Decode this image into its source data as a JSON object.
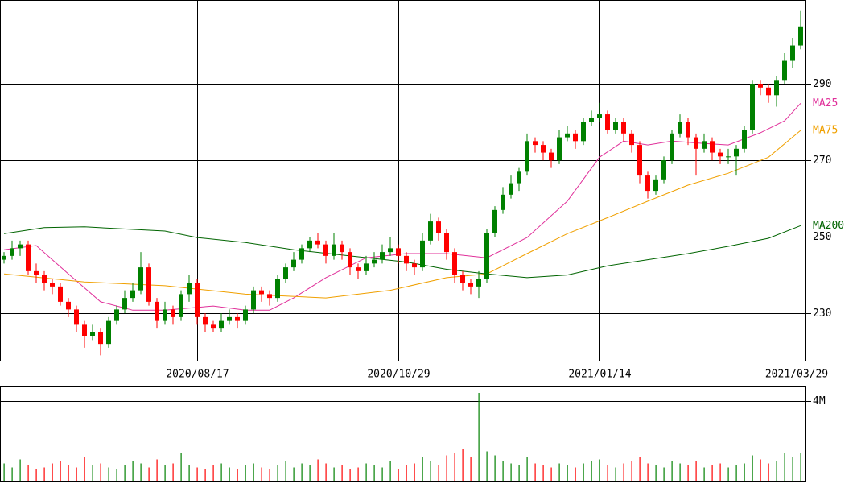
{
  "chart_data": [
    {
      "type": "candlestick",
      "xlim": [
        -0.5,
        99.5
      ],
      "ylim": [
        217.4,
        311.9
      ],
      "yticks": [
        230,
        250,
        270,
        290
      ],
      "xticks": [
        {
          "value": 24,
          "label": "2020/08/17"
        },
        {
          "value": 49,
          "label": "2020/10/29"
        },
        {
          "value": 74,
          "label": "2021/01/14"
        },
        {
          "value": 99,
          "label": "2021/03/29"
        }
      ],
      "grid": true,
      "up_color": "#008000",
      "down_color": "#ff0000",
      "candles": [
        [
          244,
          246,
          243,
          245
        ],
        [
          245,
          249,
          244,
          247
        ],
        [
          247,
          249,
          245,
          248
        ],
        [
          248,
          249,
          240,
          241
        ],
        [
          241,
          243,
          238,
          240
        ],
        [
          240,
          241,
          236,
          238
        ],
        [
          238,
          239,
          235,
          237
        ],
        [
          237,
          238,
          232,
          233
        ],
        [
          233,
          234,
          229,
          231
        ],
        [
          231,
          232,
          225,
          227
        ],
        [
          227,
          228,
          221,
          224
        ],
        [
          224,
          227,
          223,
          225
        ],
        [
          225,
          226,
          219,
          222
        ],
        [
          222,
          229,
          221,
          228
        ],
        [
          228,
          232,
          227,
          231
        ],
        [
          231,
          236,
          230,
          234
        ],
        [
          234,
          238,
          233,
          236
        ],
        [
          236,
          246,
          235,
          242
        ],
        [
          242,
          243,
          232,
          233
        ],
        [
          233,
          234,
          226,
          228
        ],
        [
          228,
          233,
          227,
          231
        ],
        [
          231,
          232,
          227,
          229
        ],
        [
          229,
          236,
          228,
          235
        ],
        [
          235,
          240,
          233,
          238
        ],
        [
          238,
          239,
          227,
          229
        ],
        [
          229,
          230,
          225,
          227
        ],
        [
          227,
          228,
          225,
          226
        ],
        [
          226,
          230,
          225,
          228
        ],
        [
          228,
          231,
          227,
          229
        ],
        [
          229,
          230,
          226,
          228
        ],
        [
          228,
          232,
          227,
          231
        ],
        [
          231,
          237,
          230,
          236
        ],
        [
          236,
          237,
          233,
          235
        ],
        [
          235,
          236,
          232,
          234
        ],
        [
          234,
          240,
          233,
          239
        ],
        [
          239,
          243,
          238,
          242
        ],
        [
          242,
          246,
          241,
          244
        ],
        [
          244,
          248,
          243,
          247
        ],
        [
          247,
          250,
          246,
          249
        ],
        [
          249,
          251,
          247,
          248
        ],
        [
          248,
          249,
          243,
          245
        ],
        [
          245,
          251,
          244,
          248
        ],
        [
          248,
          249,
          244,
          246
        ],
        [
          246,
          247,
          240,
          242
        ],
        [
          242,
          243,
          239,
          241
        ],
        [
          241,
          245,
          240,
          243
        ],
        [
          243,
          246,
          242,
          244
        ],
        [
          244,
          248,
          243,
          246
        ],
        [
          246,
          250,
          245,
          247
        ],
        [
          247,
          248,
          243,
          245
        ],
        [
          245,
          246,
          241,
          243
        ],
        [
          243,
          244,
          240,
          242
        ],
        [
          242,
          251,
          241,
          249
        ],
        [
          249,
          256,
          248,
          254
        ],
        [
          254,
          255,
          249,
          251
        ],
        [
          251,
          252,
          244,
          246
        ],
        [
          246,
          247,
          238,
          240
        ],
        [
          240,
          241,
          236,
          238
        ],
        [
          238,
          239,
          235,
          237
        ],
        [
          237,
          241,
          234,
          239
        ],
        [
          239,
          252,
          238,
          251
        ],
        [
          251,
          258,
          250,
          257
        ],
        [
          257,
          263,
          256,
          261
        ],
        [
          261,
          266,
          260,
          264
        ],
        [
          264,
          268,
          262,
          267
        ],
        [
          267,
          277,
          266,
          275
        ],
        [
          275,
          276,
          272,
          274
        ],
        [
          274,
          275,
          270,
          272
        ],
        [
          272,
          273,
          268,
          270
        ],
        [
          270,
          278,
          269,
          276
        ],
        [
          276,
          279,
          275,
          277
        ],
        [
          277,
          278,
          273,
          275
        ],
        [
          275,
          281,
          274,
          280
        ],
        [
          280,
          283,
          279,
          281
        ],
        [
          281,
          285,
          280,
          282
        ],
        [
          282,
          283,
          277,
          278
        ],
        [
          278,
          281,
          277,
          280
        ],
        [
          280,
          281,
          275,
          277
        ],
        [
          277,
          278,
          272,
          274
        ],
        [
          274,
          275,
          264,
          266
        ],
        [
          266,
          267,
          260,
          262
        ],
        [
          262,
          266,
          261,
          265
        ],
        [
          265,
          271,
          264,
          270
        ],
        [
          270,
          278,
          269,
          277
        ],
        [
          277,
          282,
          276,
          280
        ],
        [
          280,
          281,
          274,
          276
        ],
        [
          276,
          277,
          266,
          273
        ],
        [
          273,
          277,
          272,
          275
        ],
        [
          275,
          276,
          270,
          272
        ],
        [
          272,
          273,
          269,
          271
        ],
        [
          271,
          273,
          269,
          271
        ],
        [
          271,
          274,
          266,
          273
        ],
        [
          273,
          279,
          272,
          278
        ],
        [
          278,
          291,
          277,
          290
        ],
        [
          290,
          291,
          287,
          289
        ],
        [
          289,
          290,
          285,
          287
        ],
        [
          287,
          292,
          284,
          291
        ],
        [
          291,
          298,
          290,
          296
        ],
        [
          296,
          302,
          294,
          300
        ],
        [
          300,
          309,
          299,
          305
        ]
      ],
      "series": [
        {
          "name": "MA25",
          "color": "#e0309a",
          "x": [
            0,
            4,
            8,
            12,
            16,
            20,
            26,
            30,
            33,
            36,
            40,
            45,
            50,
            55,
            60,
            65,
            70,
            74,
            77,
            80,
            83,
            87,
            90,
            94,
            97,
            99
          ],
          "values": [
            246.6,
            247.7,
            240.3,
            233,
            230.8,
            230.8,
            231.9,
            230.8,
            230.8,
            234,
            239.3,
            244.5,
            245.6,
            245.6,
            244.5,
            249.8,
            259.3,
            270.8,
            275,
            274,
            275,
            274.4,
            274,
            277.2,
            280.3,
            284.9
          ]
        },
        {
          "name": "MA75",
          "color": "#f0a000",
          "x": [
            0,
            10,
            20,
            30,
            40,
            48,
            55,
            60,
            65,
            70,
            75,
            80,
            85,
            90,
            95,
            99
          ],
          "values": [
            240.3,
            238.2,
            237.2,
            235,
            234,
            236,
            239.3,
            240.3,
            245.6,
            250.8,
            255,
            259.3,
            263.5,
            266.6,
            270.8,
            277.8
          ]
        },
        {
          "name": "MA200",
          "color": "#006400",
          "x": [
            0,
            5,
            10,
            20,
            24,
            30,
            36,
            43,
            50,
            55,
            60,
            65,
            70,
            75,
            80,
            85,
            90,
            95,
            99
          ],
          "values": [
            250.8,
            252.4,
            252.6,
            251.5,
            249.8,
            248.5,
            246.6,
            245,
            243.4,
            241.5,
            240.3,
            239.3,
            240,
            242.4,
            244,
            245.6,
            247.5,
            249.6,
            252.9
          ]
        }
      ]
    },
    {
      "type": "bar",
      "ylim": [
        0,
        4720000
      ],
      "yticks": [
        {
          "value": 4000000,
          "label": "4M"
        }
      ],
      "values": [
        900000,
        700000,
        1100000,
        800000,
        600000,
        700000,
        900000,
        1000000,
        800000,
        700000,
        1200000,
        800000,
        900000,
        700000,
        600000,
        800000,
        1000000,
        900000,
        700000,
        1100000,
        800000,
        900000,
        1400000,
        800000,
        700000,
        600000,
        800000,
        900000,
        700000,
        600000,
        800000,
        900000,
        700000,
        600000,
        800000,
        1000000,
        700000,
        900000,
        800000,
        1100000,
        900000,
        700000,
        800000,
        600000,
        700000,
        900000,
        800000,
        700000,
        1000000,
        600000,
        800000,
        900000,
        1200000,
        1000000,
        800000,
        1300000,
        1400000,
        1600000,
        1200000,
        4400000,
        1500000,
        1300000,
        1000000,
        900000,
        800000,
        1200000,
        900000,
        800000,
        700000,
        900000,
        800000,
        700000,
        900000,
        1000000,
        1100000,
        800000,
        700000,
        900000,
        1000000,
        1200000,
        900000,
        800000,
        700000,
        1000000,
        900000,
        800000,
        1000000,
        700000,
        800000,
        900000,
        700000,
        800000,
        900000,
        1300000,
        1100000,
        900000,
        1000000,
        1400000,
        1200000,
        1400000
      ]
    }
  ]
}
